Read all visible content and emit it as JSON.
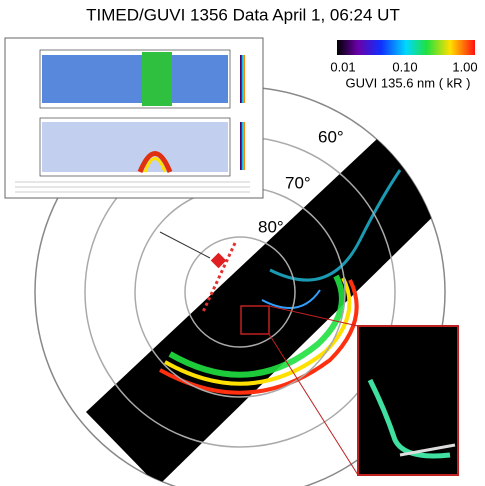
{
  "header": {
    "title": "TIMED/GUVI 1356 Data April 1, 06:24 UT"
  },
  "colorbar": {
    "ticks": [
      "0.01",
      "0.10",
      "1.00"
    ],
    "label": "GUVI 135.6 nm  ( kR )"
  },
  "rings": {
    "labels": [
      "60°",
      "70°",
      "80°"
    ]
  }
}
